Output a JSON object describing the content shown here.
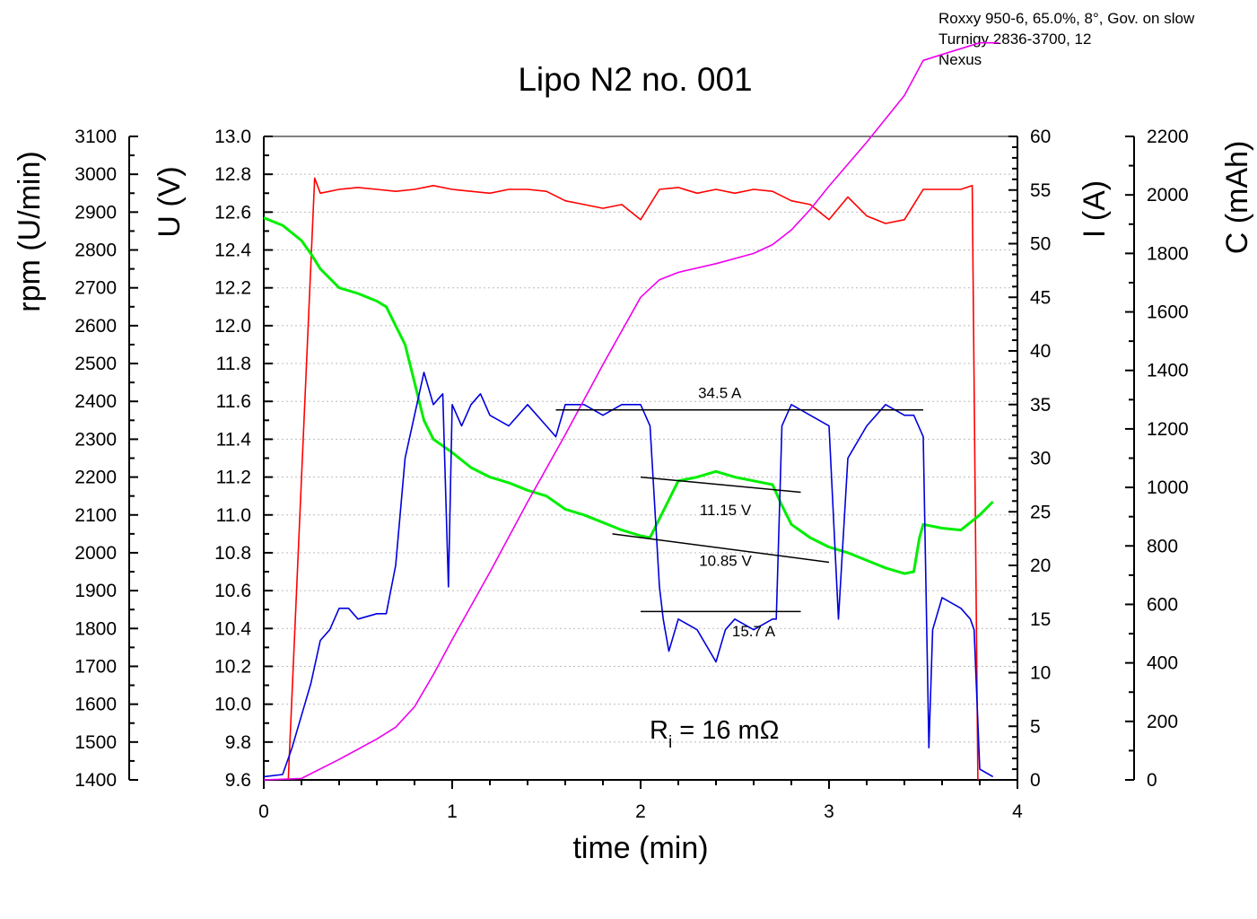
{
  "chart_data": {
    "type": "line",
    "title": "Lipo N2 no. 001",
    "info_lines": [
      "Roxxy 950-6, 65.0%, 8°, Gov. on slow",
      "Turnigy 2836-3700, 12",
      "Nexus"
    ],
    "xlabel": "time (min)",
    "xlim": [
      0,
      4
    ],
    "x_ticks": [
      "0",
      "1",
      "2",
      "3",
      "4"
    ],
    "grid": "horizontal dotted",
    "axes": {
      "rpm": {
        "label": "rpm (U/min)",
        "lim": [
          1400,
          3100
        ],
        "ticks": [
          "1400",
          "1500",
          "1600",
          "1700",
          "1800",
          "1900",
          "2000",
          "2100",
          "2200",
          "2300",
          "2400",
          "2500",
          "2600",
          "2700",
          "2800",
          "2900",
          "3000",
          "3100"
        ]
      },
      "voltage": {
        "label": "U (V)",
        "lim": [
          9.6,
          13.0
        ],
        "ticks": [
          "9.6",
          "9.8",
          "10.0",
          "10.2",
          "10.4",
          "10.6",
          "10.8",
          "11.0",
          "11.2",
          "11.4",
          "11.6",
          "11.8",
          "12.0",
          "12.2",
          "12.4",
          "12.6",
          "12.8",
          "13.0"
        ]
      },
      "current": {
        "label": "I (A)",
        "lim": [
          0,
          60
        ],
        "ticks": [
          "0",
          "5",
          "10",
          "15",
          "20",
          "25",
          "30",
          "35",
          "40",
          "45",
          "50",
          "55",
          "60"
        ]
      },
      "capacity": {
        "label": "C (mAh)",
        "lim": [
          0,
          2200
        ],
        "ticks": [
          "0",
          "200",
          "400",
          "600",
          "800",
          "1000",
          "1200",
          "1400",
          "1600",
          "1800",
          "2000",
          "2200"
        ]
      }
    },
    "series": [
      {
        "name": "rpm",
        "axis": "rpm",
        "color": "#ff0000",
        "x": [
          0.13,
          0.27,
          0.3,
          0.4,
          0.5,
          0.6,
          0.7,
          0.8,
          0.9,
          1.0,
          1.1,
          1.2,
          1.3,
          1.4,
          1.5,
          1.6,
          1.7,
          1.8,
          1.9,
          2.0,
          2.1,
          2.2,
          2.3,
          2.4,
          2.5,
          2.6,
          2.7,
          2.8,
          2.9,
          3.0,
          3.1,
          3.2,
          3.3,
          3.4,
          3.5,
          3.6,
          3.7,
          3.76,
          3.79
        ],
        "y": [
          1400,
          2990,
          2950,
          2960,
          2965,
          2960,
          2955,
          2960,
          2970,
          2960,
          2955,
          2950,
          2960,
          2960,
          2955,
          2930,
          2920,
          2910,
          2920,
          2880,
          2960,
          2965,
          2950,
          2960,
          2950,
          2960,
          2955,
          2930,
          2920,
          2880,
          2940,
          2890,
          2870,
          2880,
          2960,
          2960,
          2960,
          2970,
          1400
        ]
      },
      {
        "name": "voltage",
        "axis": "voltage",
        "color": "#00ee00",
        "x": [
          0,
          0.1,
          0.2,
          0.25,
          0.3,
          0.4,
          0.5,
          0.6,
          0.65,
          0.7,
          0.75,
          0.8,
          0.85,
          0.9,
          1.0,
          1.1,
          1.2,
          1.3,
          1.4,
          1.5,
          1.6,
          1.7,
          1.8,
          1.9,
          2.0,
          2.05,
          2.1,
          2.2,
          2.3,
          2.4,
          2.5,
          2.6,
          2.7,
          2.75,
          2.8,
          2.9,
          3.0,
          3.1,
          3.2,
          3.3,
          3.4,
          3.45,
          3.48,
          3.5,
          3.6,
          3.7,
          3.8,
          3.87
        ],
        "y": [
          12.57,
          12.53,
          12.45,
          12.38,
          12.3,
          12.2,
          12.17,
          12.13,
          12.1,
          12.0,
          11.9,
          11.7,
          11.5,
          11.4,
          11.33,
          11.25,
          11.2,
          11.17,
          11.13,
          11.1,
          11.03,
          11.0,
          10.96,
          10.92,
          10.89,
          10.88,
          10.98,
          11.18,
          11.2,
          11.23,
          11.2,
          11.18,
          11.16,
          11.05,
          10.95,
          10.88,
          10.83,
          10.8,
          10.76,
          10.72,
          10.69,
          10.7,
          10.88,
          10.95,
          10.93,
          10.92,
          11.0,
          11.07
        ]
      },
      {
        "name": "current",
        "axis": "current",
        "color": "#0000dd",
        "x": [
          0,
          0.1,
          0.15,
          0.2,
          0.25,
          0.3,
          0.35,
          0.4,
          0.45,
          0.5,
          0.6,
          0.65,
          0.7,
          0.75,
          0.8,
          0.85,
          0.9,
          0.95,
          0.98,
          1.0,
          1.05,
          1.1,
          1.15,
          1.2,
          1.3,
          1.4,
          1.5,
          1.55,
          1.6,
          1.7,
          1.8,
          1.9,
          2.0,
          2.05,
          2.1,
          2.12,
          2.15,
          2.2,
          2.3,
          2.4,
          2.45,
          2.5,
          2.6,
          2.7,
          2.72,
          2.75,
          2.8,
          2.9,
          3.0,
          3.05,
          3.1,
          3.2,
          3.3,
          3.4,
          3.45,
          3.5,
          3.53,
          3.55,
          3.6,
          3.7,
          3.75,
          3.77,
          3.8,
          3.87
        ],
        "y": [
          0.3,
          0.5,
          3,
          6,
          9,
          13,
          14,
          16,
          16,
          15,
          15.5,
          15.5,
          20,
          30,
          34,
          38,
          35,
          36,
          18,
          35,
          33,
          35,
          36,
          34,
          33,
          35,
          33,
          32,
          35,
          35,
          34,
          35,
          35,
          33,
          18,
          15,
          12,
          15,
          14,
          11,
          14,
          15,
          14,
          15,
          15,
          33,
          35,
          34,
          33,
          15,
          30,
          33,
          35,
          34,
          34,
          32,
          3,
          14,
          17,
          16,
          15,
          14,
          1,
          0.3
        ]
      },
      {
        "name": "capacity",
        "axis": "capacity",
        "color": "#ee00ee",
        "x": [
          0,
          0.2,
          0.4,
          0.6,
          0.7,
          0.8,
          0.9,
          1.0,
          1.2,
          1.4,
          1.6,
          1.8,
          2.0,
          2.1,
          2.2,
          2.4,
          2.6,
          2.7,
          2.8,
          2.9,
          3.0,
          3.2,
          3.4,
          3.5,
          3.6,
          3.7,
          3.8,
          3.9
        ],
        "y": [
          0,
          5,
          70,
          140,
          180,
          250,
          360,
          480,
          710,
          950,
          1180,
          1420,
          1650,
          1710,
          1735,
          1765,
          1800,
          1830,
          1880,
          1950,
          2030,
          2180,
          2340,
          2460,
          2480,
          2500,
          2520,
          2520
        ]
      }
    ],
    "annotations": [
      {
        "text": "34.5 A",
        "axis": "current",
        "line": [
          [
            1.55,
            34.5
          ],
          [
            3.5,
            34.5
          ]
        ],
        "label_at": [
          2.42,
          35.6
        ]
      },
      {
        "text": "11.15 V",
        "axis": "voltage",
        "line": [
          [
            2.0,
            11.2
          ],
          [
            2.85,
            11.12
          ]
        ],
        "label_at": [
          2.45,
          11.0
        ]
      },
      {
        "text": "10.85 V",
        "axis": "voltage",
        "line": [
          [
            1.85,
            10.9
          ],
          [
            3.0,
            10.75
          ]
        ],
        "label_at": [
          2.45,
          10.73
        ]
      },
      {
        "text": "15.7 A",
        "axis": "current",
        "line": [
          [
            2.0,
            15.7
          ],
          [
            2.85,
            15.7
          ]
        ],
        "label_at": [
          2.6,
          13.4
        ]
      }
    ],
    "ri": {
      "symbol": "R",
      "subscript": "i",
      "rest": " = 16 mΩ"
    }
  }
}
